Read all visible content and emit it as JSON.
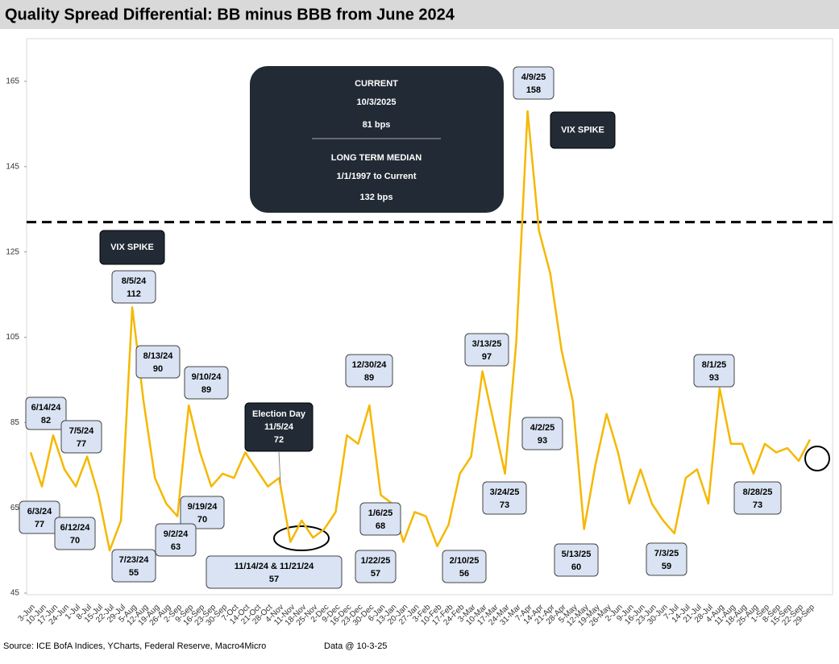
{
  "chart_data": {
    "type": "line",
    "title": "Quality Spread Differential: BB minus BBB from June 2024",
    "source": "Source: ICE BofA Indices, YCharts, Federal Reserve, Macro4Micro",
    "data_note": "Data @ 10-3-25",
    "categories": [
      "3-Jun",
      "10-Jun",
      "17-Jun",
      "24-Jun",
      "1-Jul",
      "8-Jul",
      "15-Jul",
      "22-Jul",
      "29-Jul",
      "5-Aug",
      "12-Aug",
      "19-Aug",
      "26-Aug",
      "2-Sep",
      "9-Sep",
      "16-Sep",
      "23-Sep",
      "30-Sep",
      "7-Oct",
      "14-Oct",
      "21-Oct",
      "28-Oct",
      "4-Nov",
      "11-Nov",
      "18-Nov",
      "25-Nov",
      "2-Dec",
      "9-Dec",
      "16-Dec",
      "23-Dec",
      "30-Dec",
      "6-Jan",
      "13-Jan",
      "20-Jan",
      "27-Jan",
      "3-Feb",
      "10-Feb",
      "17-Feb",
      "24-Feb",
      "3-Mar",
      "10-Mar",
      "17-Mar",
      "24-Mar",
      "31-Mar",
      "7-Apr",
      "14-Apr",
      "21-Apr",
      "28-Apr",
      "5-May",
      "12-May",
      "19-May",
      "26-May",
      "2-Jun",
      "9-Jun",
      "16-Jun",
      "23-Jun",
      "30-Jun",
      "7-Jul",
      "14-Jul",
      "21-Jul",
      "28-Jul",
      "4-Aug",
      "11-Aug",
      "18-Aug",
      "25-Aug",
      "1-Sep",
      "8-Sep",
      "15-Sep",
      "22-Sep",
      "29-Sep"
    ],
    "series": [
      {
        "color": "#f5b800",
        "values": [
          78,
          70,
          82,
          74,
          70,
          77,
          68,
          55,
          62,
          112,
          90,
          72,
          66,
          63,
          89,
          78,
          70,
          73,
          72,
          78,
          74,
          70,
          72,
          57,
          62,
          58,
          60,
          64,
          82,
          80,
          89,
          68,
          66,
          57,
          64,
          63,
          56,
          61,
          73,
          77,
          97,
          85,
          73,
          104,
          158,
          130,
          120,
          102,
          90,
          60,
          75,
          87,
          78,
          66,
          74,
          66,
          62,
          59,
          72,
          74,
          66,
          93,
          80,
          80,
          73,
          80,
          78,
          79,
          76,
          81
        ]
      }
    ],
    "ylim": [
      45,
      175
    ],
    "yticks": [
      45,
      65,
      85,
      105,
      125,
      145,
      165
    ],
    "median": 132,
    "info_box": {
      "current_title": "CURRENT",
      "current_date": "10/3/2025",
      "current_value": "81 bps",
      "median_title": "LONG TERM MEDIAN",
      "median_range": "1/1/1997 to Current",
      "median_value": "132 bps"
    },
    "annotations": [
      {
        "date": "6/14/24",
        "value": 82
      },
      {
        "date": "7/5/24",
        "value": 77
      },
      {
        "date": "6/3/24",
        "value": 77
      },
      {
        "date": "6/12/24",
        "value": 70
      },
      {
        "date": "7/23/24",
        "value": 55
      },
      {
        "date": "8/5/24",
        "value": 112
      },
      {
        "date": "8/13/24",
        "value": 90
      },
      {
        "date": "9/10/24",
        "value": 89
      },
      {
        "date": "9/19/24",
        "value": 70
      },
      {
        "date": "9/2/24",
        "value": 63
      },
      {
        "date": "11/14/24 & 11/21/24",
        "value": 57
      },
      {
        "date": "12/30/24",
        "value": 89
      },
      {
        "date": "1/6/25",
        "value": 68
      },
      {
        "date": "1/22/25",
        "value": 57
      },
      {
        "date": "2/10/25",
        "value": 56
      },
      {
        "date": "3/13/25",
        "value": 97
      },
      {
        "date": "3/24/25",
        "value": 73
      },
      {
        "date": "4/9/25",
        "value": 158
      },
      {
        "date": "4/2/25",
        "value": 93
      },
      {
        "date": "5/13/25",
        "value": 60
      },
      {
        "date": "7/3/25",
        "value": 59
      },
      {
        "date": "8/1/25",
        "value": 93
      },
      {
        "date": "8/28/25",
        "value": 73
      }
    ],
    "vix_labels": [
      "VIX SPIKE",
      "VIX SPIKE"
    ],
    "election": {
      "title": "Election Day",
      "date": "11/5/24",
      "value": 72
    }
  }
}
